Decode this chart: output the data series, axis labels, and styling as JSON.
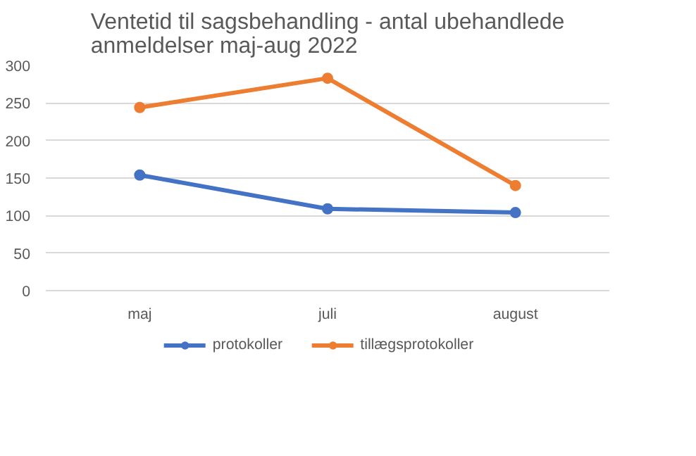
{
  "chart_data": {
    "type": "line",
    "title": "Ventetid til sagsbehandling - antal ubehandlede\nanmeldelser maj-aug 2022",
    "categories": [
      "maj",
      "juli",
      "august"
    ],
    "series": [
      {
        "name": "protokoller",
        "color": "#4472c4",
        "values": [
          154,
          109,
          104
        ]
      },
      {
        "name": "tillægsprotokoller",
        "color": "#ed7d31",
        "values": [
          244,
          283,
          140
        ]
      }
    ],
    "ylim": [
      0,
      300
    ],
    "yticks": [
      0,
      50,
      100,
      150,
      200,
      250,
      300
    ],
    "grid": "y",
    "legend": "bottom",
    "marker": "circle",
    "line_style": "solid"
  }
}
